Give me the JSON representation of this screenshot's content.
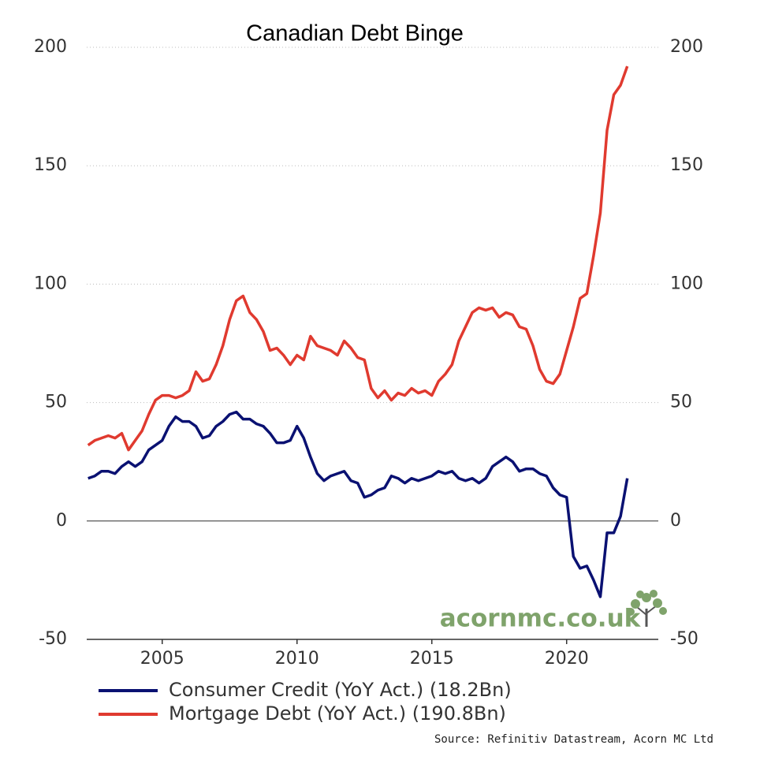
{
  "chart_data": {
    "type": "line",
    "title": "Canadian Debt Binge",
    "x": [
      2002.25,
      2002.5,
      2002.75,
      2003,
      2003.25,
      2003.5,
      2003.75,
      2004,
      2004.25,
      2004.5,
      2004.75,
      2005,
      2005.25,
      2005.5,
      2005.75,
      2006,
      2006.25,
      2006.5,
      2006.75,
      2007,
      2007.25,
      2007.5,
      2007.75,
      2008,
      2008.25,
      2008.5,
      2008.75,
      2009,
      2009.25,
      2009.5,
      2009.75,
      2010,
      2010.25,
      2010.5,
      2010.75,
      2011,
      2011.25,
      2011.5,
      2011.75,
      2012,
      2012.25,
      2012.5,
      2012.75,
      2013,
      2013.25,
      2013.5,
      2013.75,
      2014,
      2014.25,
      2014.5,
      2014.75,
      2015,
      2015.25,
      2015.5,
      2015.75,
      2016,
      2016.25,
      2016.5,
      2016.75,
      2017,
      2017.25,
      2017.5,
      2017.75,
      2018,
      2018.25,
      2018.5,
      2018.75,
      2019,
      2019.25,
      2019.5,
      2019.75,
      2020,
      2020.25,
      2020.5,
      2020.75,
      2021,
      2021.25,
      2021.5,
      2021.75,
      2022,
      2022.25
    ],
    "series": [
      {
        "name": "Consumer Credit (YoY Act.) (18.2Bn)",
        "color": "#0a1172",
        "values": [
          18,
          19,
          21,
          21,
          20,
          23,
          25,
          23,
          25,
          30,
          32,
          34,
          40,
          44,
          42,
          42,
          40,
          35,
          36,
          40,
          42,
          45,
          46,
          43,
          43,
          41,
          40,
          37,
          33,
          33,
          34,
          40,
          35,
          27,
          20,
          17,
          19,
          20,
          21,
          17,
          16,
          10,
          11,
          13,
          14,
          19,
          18,
          16,
          18,
          17,
          18,
          19,
          21,
          20,
          21,
          18,
          17,
          18,
          16,
          18,
          23,
          25,
          27,
          25,
          21,
          22,
          22,
          20,
          19,
          14,
          11,
          10,
          -15,
          -20,
          -19,
          -25,
          -32,
          -5,
          -5,
          2,
          18
        ]
      },
      {
        "name": "Mortgage Debt (YoY Act.) (190.8Bn)",
        "color": "#e03a2f",
        "values": [
          32,
          34,
          35,
          36,
          35,
          37,
          30,
          34,
          38,
          45,
          51,
          53,
          53,
          52,
          53,
          55,
          63,
          59,
          60,
          66,
          74,
          85,
          93,
          95,
          88,
          85,
          80,
          72,
          73,
          70,
          66,
          70,
          68,
          78,
          74,
          73,
          72,
          70,
          76,
          73,
          69,
          68,
          56,
          52,
          55,
          51,
          54,
          53,
          56,
          54,
          55,
          53,
          59,
          62,
          66,
          76,
          82,
          88,
          90,
          89,
          90,
          86,
          88,
          87,
          82,
          81,
          74,
          64,
          59,
          58,
          62,
          72,
          82,
          94,
          96,
          112,
          130,
          165,
          180,
          184,
          192
        ]
      }
    ],
    "xlim": [
      2002.2,
      2023.4
    ],
    "xticks": [
      2005,
      2010,
      2015,
      2020
    ],
    "ylim": [
      -50,
      200
    ],
    "yticks": [
      200,
      150,
      100,
      50,
      0,
      -50
    ],
    "y2lim": [
      -50,
      200
    ],
    "y2ticks": [
      200,
      150,
      100,
      50,
      0,
      -50
    ],
    "grid": true,
    "watermark": "acornmc.co.uk",
    "source": "Source: Refinitiv Datastream, Acorn MC Ltd"
  }
}
